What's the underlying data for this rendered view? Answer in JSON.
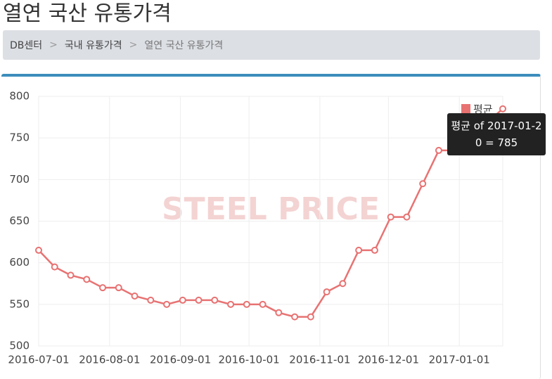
{
  "page": {
    "title": "열연 국산 유통가격",
    "breadcrumb": [
      "DB센터",
      "국내 유통가격",
      "열연 국산 유통가격"
    ]
  },
  "chart_data": {
    "type": "line",
    "watermark": "STEEL PRICE",
    "tooltip": "평균 of 2017-01-20 = 785",
    "x": [
      "2016-07-01",
      "2016-07-08",
      "2016-07-15",
      "2016-07-22",
      "2016-07-29",
      "2016-08-05",
      "2016-08-12",
      "2016-08-19",
      "2016-08-26",
      "2016-09-02",
      "2016-09-09",
      "2016-09-16",
      "2016-09-23",
      "2016-09-30",
      "2016-10-07",
      "2016-10-14",
      "2016-10-21",
      "2016-10-28",
      "2016-11-04",
      "2016-11-11",
      "2016-11-18",
      "2016-11-25",
      "2016-12-02",
      "2016-12-09",
      "2016-12-16",
      "2016-12-23",
      "2016-12-30",
      "2017-01-20"
    ],
    "series": [
      {
        "name": "평균",
        "color": "#e87272",
        "values": [
          615,
          595,
          585,
          580,
          570,
          570,
          560,
          555,
          550,
          555,
          555,
          555,
          550,
          550,
          550,
          540,
          535,
          535,
          565,
          575,
          615,
          615,
          655,
          655,
          695,
          735,
          735,
          785
        ]
      }
    ],
    "xlim": [
      "2016-07-01",
      "2017-01-20"
    ],
    "xticks": [
      "2016-07-01",
      "2016-08-01",
      "2016-09-01",
      "2016-10-01",
      "2016-11-01",
      "2016-12-01",
      "2017-01-01"
    ],
    "ylim": [
      500,
      800
    ],
    "yticks": [
      500,
      550,
      600,
      650,
      700,
      750,
      800
    ],
    "grid": true,
    "legend": "top-right"
  }
}
